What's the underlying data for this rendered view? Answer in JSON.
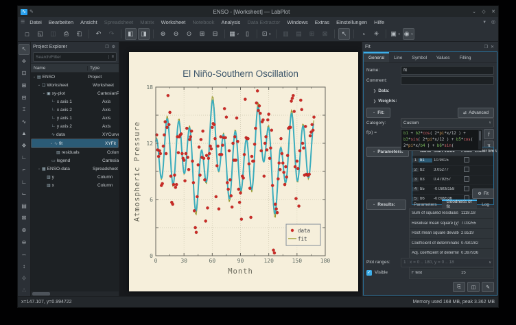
{
  "window": {
    "title": "ENSO - [Worksheet] — LabPlot",
    "controls": {
      "minimize": "⌄",
      "maximize": "◇",
      "close": "✕"
    }
  },
  "menu": {
    "items": [
      {
        "label": "Datei",
        "enabled": true
      },
      {
        "label": "Bearbeiten",
        "enabled": true
      },
      {
        "label": "Ansicht",
        "enabled": true
      },
      {
        "label": "Spreadsheet",
        "enabled": false
      },
      {
        "label": "Matrix",
        "enabled": false
      },
      {
        "label": "Worksheet",
        "enabled": true
      },
      {
        "label": "Notebook",
        "enabled": false
      },
      {
        "label": "Analysis",
        "enabled": true
      },
      {
        "label": "Data Extractor",
        "enabled": false
      },
      {
        "label": "Windows",
        "enabled": true
      },
      {
        "label": "Extras",
        "enabled": true
      },
      {
        "label": "Einstellungen",
        "enabled": true
      },
      {
        "label": "Hilfe",
        "enabled": true
      }
    ]
  },
  "toolbar": {
    "items": [
      {
        "glyph": "□",
        "name": "new-project"
      },
      {
        "glyph": "◱",
        "name": "open-project"
      },
      {
        "glyph": "◫",
        "name": "save-project",
        "disabled": true
      },
      {
        "glyph": "⎙",
        "name": "print"
      },
      {
        "glyph": "⎗",
        "name": "print-preview"
      },
      {
        "sep": true
      },
      {
        "glyph": "↶",
        "name": "undo"
      },
      {
        "glyph": "↷",
        "name": "redo",
        "disabled": true
      },
      {
        "sep": true
      },
      {
        "glyph": "◧",
        "name": "toggle-project-explorer",
        "active": true
      },
      {
        "glyph": "◨",
        "name": "toggle-properties-explorer",
        "active": true
      },
      {
        "sep": true
      },
      {
        "glyph": "⊕",
        "name": "zoom-in"
      },
      {
        "glyph": "⊖",
        "name": "zoom-out"
      },
      {
        "glyph": "⊙",
        "name": "zoom-original"
      },
      {
        "glyph": "⊞",
        "name": "fit-to-page"
      },
      {
        "glyph": "⊟",
        "name": "fit-to-width"
      },
      {
        "sep": true
      },
      {
        "glyph": "▦",
        "name": "new-plot-area",
        "arrow": true
      },
      {
        "glyph": "▯",
        "name": "new-text-label"
      },
      {
        "sep": true
      },
      {
        "glyph": "⊡",
        "name": "magnification",
        "arrow": true
      },
      {
        "sep": true
      },
      {
        "glyph": "▥",
        "name": "vertical-layout",
        "disabled": true
      },
      {
        "glyph": "▤",
        "name": "horizontal-layout",
        "disabled": true
      },
      {
        "glyph": "⊞",
        "name": "grid-layout",
        "disabled": true
      },
      {
        "glyph": "⊠",
        "name": "break-layout",
        "disabled": true
      },
      {
        "sep": true
      },
      {
        "glyph": "↖",
        "name": "select-mode",
        "active": true
      },
      {
        "sep": true
      },
      {
        "glyph": "◔",
        "name": "presenter-mode"
      },
      {
        "glyph": "✳",
        "name": "configure-worksheet"
      },
      {
        "sep": true
      },
      {
        "glyph": "▣",
        "name": "plot-interaction-mode",
        "arrow": true
      },
      {
        "glyph": "◉",
        "name": "apply-actions-to",
        "arrow": true,
        "active": true
      }
    ]
  },
  "left_toolbar": {
    "items": [
      {
        "glyph": "↖",
        "name": "select-mode",
        "active": true
      },
      {
        "glyph": "✛",
        "name": "crosshair-mode"
      },
      {
        "glyph": "⊡",
        "name": "zoom-select"
      },
      {
        "glyph": "⊞",
        "name": "zoom-x-select"
      },
      {
        "glyph": "⊟",
        "name": "zoom-y-select"
      },
      {
        "glyph": "⌶",
        "name": "cursor-tool"
      },
      {
        "glyph": "∿",
        "name": "add-xy-curve"
      },
      {
        "glyph": "▲",
        "name": "add-histogram"
      },
      {
        "glyph": "❖",
        "name": "add-boxplot"
      },
      {
        "glyph": "∟",
        "name": "add-axis"
      },
      {
        "glyph": "⌐",
        "name": "add-legend"
      },
      {
        "glyph": "∟",
        "name": "add-horizontal-axis"
      },
      {
        "glyph": "⌙",
        "name": "add-vertical-axis"
      },
      {
        "glyph": "▤",
        "name": "add-text-label"
      },
      {
        "glyph": "⊠",
        "name": "add-image"
      },
      {
        "glyph": "⊕",
        "name": "zoom-in-tool"
      },
      {
        "glyph": "⊖",
        "name": "zoom-out-tool"
      },
      {
        "glyph": "↔",
        "name": "shift-x"
      },
      {
        "glyph": "↕",
        "name": "shift-y"
      },
      {
        "glyph": "⊹",
        "name": "auto-scale"
      },
      {
        "glyph": "∴",
        "name": "more-tools"
      }
    ]
  },
  "project_explorer": {
    "title": "Project Explorer",
    "search_placeholder": "Search/Filter",
    "columns": [
      "Name",
      "Type"
    ],
    "rows": [
      {
        "name": "ENSO",
        "type": "Project",
        "depth": 0,
        "expanded": true,
        "icon": "project"
      },
      {
        "name": "Worksheet",
        "type": "Worksheet",
        "depth": 1,
        "expanded": true,
        "icon": "worksheet"
      },
      {
        "name": "xy-plot",
        "type": "CartesianPlot",
        "depth": 2,
        "expanded": true,
        "icon": "plot"
      },
      {
        "name": "x axis 1",
        "type": "Axis",
        "depth": 3,
        "icon": "axis"
      },
      {
        "name": "x axis 2",
        "type": "Axis",
        "depth": 3,
        "icon": "axis"
      },
      {
        "name": "y axis 1",
        "type": "Axis",
        "depth": 3,
        "icon": "axis"
      },
      {
        "name": "y axis 2",
        "type": "Axis",
        "depth": 3,
        "icon": "axis"
      },
      {
        "name": "data",
        "type": "XYCurve",
        "depth": 3,
        "icon": "curve"
      },
      {
        "name": "fit",
        "type": "XYFitCurve",
        "depth": 3,
        "expanded": true,
        "selected": true,
        "icon": "fit-curve"
      },
      {
        "name": "residuals",
        "type": "Column",
        "depth": 4,
        "icon": "column"
      },
      {
        "name": "legend",
        "type": "CartesianPlotLegend",
        "depth": 3,
        "icon": "legend"
      },
      {
        "name": "ENSO-data",
        "type": "Spreadsheet",
        "depth": 1,
        "expanded": true,
        "icon": "spreadsheet"
      },
      {
        "name": "y",
        "type": "Column",
        "depth": 2,
        "icon": "column"
      },
      {
        "name": "x",
        "type": "Column",
        "depth": 2,
        "icon": "column"
      }
    ]
  },
  "fit_dock": {
    "title": "Fit",
    "tabs": [
      "General",
      "Line",
      "Symbol",
      "Values",
      "Filling"
    ],
    "active_tab": "General",
    "name_label": "Name:",
    "name_value": "fit",
    "comment_label": "Comment:",
    "comment_value": "",
    "data_group": "Data:",
    "weights_group": "Weights:",
    "fit_group": "Fit:",
    "advanced_button": "Advanced",
    "category_label": "Category:",
    "category_value": "Custom",
    "fx_label": "f(x) =",
    "formula": "b1 + b2*cos( 2*pi*x/12 ) + b3*sin( 2*pi*x/12 ) + b5*cos( 2*pi*x/b4 ) + b6*sin( 2*pi*x/b4 ) + b8*cos( 2*pi*x/b7 ) + b9*sin( 2*pi*x/b7 )",
    "function_button": "ƒ",
    "pi_button": "π",
    "parameters_group": "Parameters:",
    "parameters_table": {
      "headers": [
        "Name",
        "Start value",
        "Fixed",
        "Lower limit",
        "Upper limit"
      ],
      "rows": [
        {
          "num": "1",
          "name": "b1",
          "start": "10.9415"
        },
        {
          "num": "2",
          "name": "b2",
          "start": "3.05277"
        },
        {
          "num": "3",
          "name": "b3",
          "start": "0.479257"
        },
        {
          "num": "4",
          "name": "b5",
          "start": "-0.0808158"
        },
        {
          "num": "5",
          "name": "b6",
          "start": "-0.699536"
        }
      ]
    },
    "fit_button": "Fit",
    "results_group": "Results:",
    "results_tabs": [
      "Parameters",
      "Goodness of fit",
      "Log"
    ],
    "results_active_tab": "Goodness of fit",
    "goodness_rows": [
      [
        "Sum of squared residuals (χ²)",
        "1118.18"
      ],
      [
        "Residual mean square (χ²/dof)",
        "7.03255"
      ],
      [
        "Root mean square deviation (RMSD, SD)",
        "2.6519"
      ],
      [
        "Coefficient of determination (R²)",
        "0.430282"
      ],
      [
        "Adj. coefficient of determination (R²)",
        "0.397936"
      ],
      [
        "χ²-test ( P > χ² )",
        "0"
      ],
      [
        "F test",
        "15"
      ]
    ],
    "plot_ranges_label": "Plot ranges:",
    "plot_ranges_value": "1 : x = 0 .. 180, y = 0 .. 18",
    "visible_label": "Visible",
    "visible_checked": true
  },
  "statusbar": {
    "left": "x=147.107, y=0.994722",
    "right": "Memory used 168 MB, peak 3.362 MB"
  },
  "chart_data": {
    "type": "scatter",
    "title": "El Niño-Southern Oscillation",
    "xlabel": "Month",
    "ylabel": "Atmospheric Pressure",
    "xlim": [
      0,
      180
    ],
    "ylim": [
      0,
      18
    ],
    "xticks": [
      0,
      30,
      60,
      90,
      120,
      150,
      180
    ],
    "yticks": [
      0,
      6,
      12,
      18
    ],
    "grid": true,
    "legend_position": "bottom-right",
    "legend": [
      {
        "label": "data",
        "type": "scatter",
        "color": "#cb2b26"
      },
      {
        "label": "fit",
        "type": "line",
        "color": "#99992b"
      }
    ],
    "colors": {
      "page": "#f6efdb",
      "scatter": "#cb2b26",
      "fit_line": "#3badbd",
      "fit_legend_line": "#99992b",
      "title": "#3c556a"
    },
    "series": [
      {
        "name": "data",
        "type": "scatter",
        "color": "#cb2b26",
        "x_start": 1,
        "y": [
          12.9,
          11.3,
          10.6,
          11.2,
          10.9,
          7.5,
          7.7,
          11.7,
          12.9,
          14.3,
          10.9,
          13.7,
          17.1,
          14,
          15.3,
          8.5,
          5.7,
          5.5,
          7.6,
          8.6,
          7.3,
          7.6,
          12.7,
          11,
          12.7,
          12.9,
          13,
          10.9,
          10.4,
          10.2,
          8,
          10.9,
          13.6,
          10.5,
          9.2,
          12.4,
          12.7,
          13.3,
          10.1,
          7.8,
          4.8,
          3,
          2.5,
          6.3,
          9.7,
          11.6,
          8.6,
          12.4,
          10.5,
          13.3,
          10.4,
          8.1,
          3.7,
          10.7,
          5.1,
          10.4,
          10.9,
          11.7,
          11.4,
          13.7,
          14.1,
          14,
          12.5,
          6.3,
          9.6,
          11.7,
          5,
          10.8,
          12.7,
          10.8,
          11.8,
          12.6,
          15.7,
          12.6,
          14.8,
          7.8,
          7.1,
          11.2,
          8.1,
          6.4,
          5.2,
          12,
          10.2,
          12.7,
          10.2,
          14.7,
          12.2,
          7.1,
          5.7,
          6.7,
          3.9,
          8.5,
          8.3,
          10.8,
          16.7,
          12.6,
          12.5,
          12.5,
          9.8,
          7.2,
          4.1,
          10.6,
          10.1,
          10.1,
          11.9,
          13.6,
          16.3,
          17.6,
          15.5,
          16,
          15.2,
          11.2,
          14.3,
          14.5,
          8.5,
          12,
          12.7,
          11.3,
          14.5,
          15.1,
          10.4,
          11.5,
          13.4,
          7.5,
          0.6,
          0.3,
          5.5,
          5,
          4.6,
          8.2,
          9.9,
          9.2,
          12.5,
          10.9,
          9.9,
          8.9,
          7.6,
          9.5,
          8.4,
          10.7,
          13.6,
          13.7,
          13.7,
          16.5,
          16.8,
          17.1,
          15.4,
          9.5,
          6.1,
          10.1,
          9.3,
          5.3,
          11.2,
          16.6,
          15.6,
          12,
          11.5,
          8.6,
          13.8,
          8.7,
          8.6,
          8.6,
          8.7,
          12.8,
          13.2,
          14,
          13.4,
          14.8
        ]
      },
      {
        "name": "fit",
        "type": "line",
        "color": "#3badbd",
        "model": "b1 + b2*cos(2*pi*x/12) + b3*sin(2*pi*x/12) + b5*cos(2*pi*x/b4) + b6*sin(2*pi*x/b4) + b8*cos(2*pi*x/b7) + b9*sin(2*pi*x/b7)",
        "x_range": [
          0,
          168
        ],
        "params": {
          "b1": 10.5107,
          "b2": 3.0762,
          "b3": 0.5328,
          "b4": 44.3111,
          "b5": -1.6231,
          "b6": 0.5255,
          "b7": 26.8876,
          "b8": 0.2123,
          "b9": 1.4967
        }
      }
    ]
  }
}
